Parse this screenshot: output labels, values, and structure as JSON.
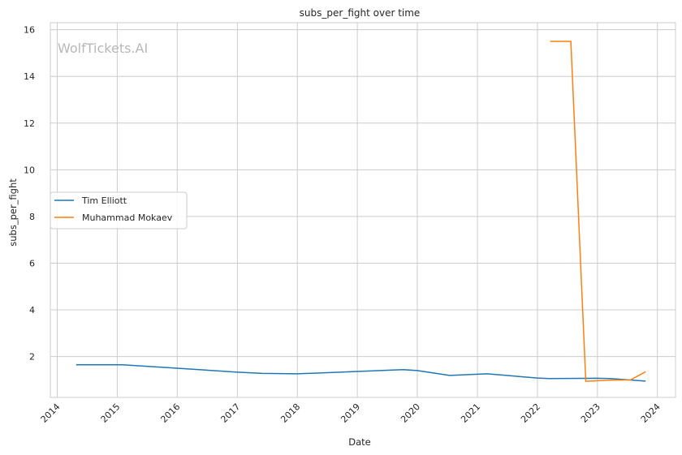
{
  "chart_data": {
    "type": "line",
    "title": "subs_per_fight over time",
    "xlabel": "Date",
    "ylabel": "subs_per_fight",
    "watermark": "WolfTickets.AI",
    "x_ticks": [
      "2014",
      "2015",
      "2016",
      "2017",
      "2018",
      "2019",
      "2020",
      "2021",
      "2022",
      "2023",
      "2024"
    ],
    "y_ticks": [
      2,
      4,
      6,
      8,
      10,
      12,
      14,
      16
    ],
    "xlim": [
      "2013-11-20",
      "2024-04-20"
    ],
    "ylim": [
      0.25,
      16.3
    ],
    "grid": true,
    "legend_position": "center-left",
    "series": [
      {
        "name": "Tim Elliott",
        "color": "#1f77b4",
        "points": [
          [
            "2014-04-26",
            1.65
          ],
          [
            "2015-01-31",
            1.65
          ],
          [
            "2016-01-01",
            1.5
          ],
          [
            "2017-01-01",
            1.33
          ],
          [
            "2017-06-03",
            1.28
          ],
          [
            "2018-01-01",
            1.26
          ],
          [
            "2019-01-01",
            1.36
          ],
          [
            "2019-10-05",
            1.44
          ],
          [
            "2020-01-01",
            1.4
          ],
          [
            "2020-07-15",
            1.19
          ],
          [
            "2021-03-01",
            1.26
          ],
          [
            "2022-01-01",
            1.08
          ],
          [
            "2022-03-12",
            1.06
          ],
          [
            "2023-01-01",
            1.07
          ],
          [
            "2023-03-18",
            1.06
          ],
          [
            "2023-10-21",
            0.95
          ]
        ]
      },
      {
        "name": "Muhammad Mokaev",
        "color": "#ff7f0e",
        "points": [
          [
            "2022-03-19",
            15.5
          ],
          [
            "2022-07-23",
            15.5
          ],
          [
            "2022-10-22",
            0.94
          ],
          [
            "2023-03-18",
            0.99
          ],
          [
            "2023-07-22",
            1.0
          ],
          [
            "2023-10-21",
            1.35
          ]
        ]
      }
    ]
  }
}
